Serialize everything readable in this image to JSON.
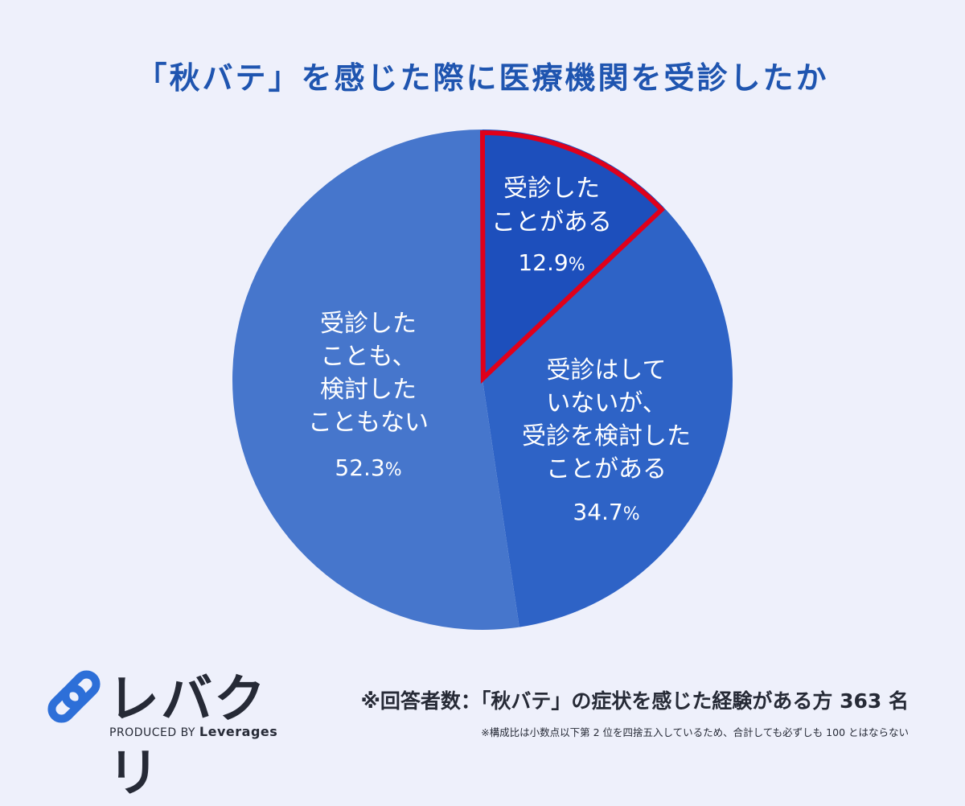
{
  "colors": {
    "background": "#eef0fb",
    "title": "#1f55b0",
    "highlight_outline": "#e0001a",
    "text_dark": "#262a36",
    "logo_blue": "#2d6fd8"
  },
  "chart_data": {
    "type": "pie",
    "title": "「秋バテ」を感じた際に医療機関を受診したか",
    "slices": [
      {
        "label_lines": [
          "受診した",
          "ことがある"
        ],
        "value": 12.9,
        "display": "12.9",
        "unit": "%",
        "color": "#1d4fbc",
        "highlighted": true
      },
      {
        "label_lines": [
          "受診はして",
          "いないが、",
          "受診を検討した",
          "ことがある"
        ],
        "value": 34.7,
        "display": "34.7",
        "unit": "%",
        "color": "#2e63c6",
        "highlighted": false
      },
      {
        "label_lines": [
          "受診した",
          "ことも、",
          "検討した",
          "こともない"
        ],
        "value": 52.3,
        "display": "52.3",
        "unit": "%",
        "color": "#4676cc",
        "highlighted": false
      }
    ]
  },
  "logo": {
    "name": "レバクリ",
    "produced_by": "PRODUCED BY",
    "company": "Leverages"
  },
  "notes": {
    "respondents": "※回答者数：「秋バテ」の症状を感じた経験がある方 363 名",
    "rounding": "※構成比は小数点以下第 2 位を四捨五入しているため、合計しても必ずしも 100 とはならない"
  }
}
